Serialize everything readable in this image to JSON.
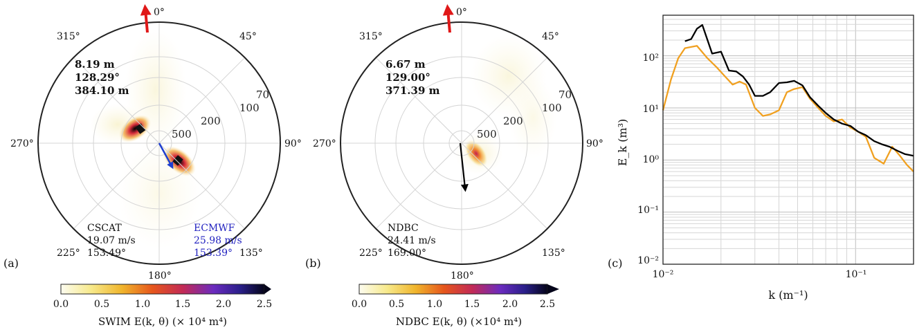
{
  "colors": {
    "frame": "#222222",
    "grid": "#d4d4d4",
    "swim_line": "#000000",
    "ndbc_line": "#f0a020",
    "ecmwf_text": "#1f1fbf",
    "dir_arrow": "#e01818",
    "ecmwf_arrow": "#1f3fd0"
  },
  "panels": {
    "a": {
      "letter": "(a)",
      "directions": [
        "0°",
        "45°",
        "90°",
        "135°",
        "180°",
        "225°",
        "270°",
        "315°"
      ],
      "wavelength_ticks": [
        "500",
        "200",
        "100",
        "70"
      ],
      "stats": [
        "8.19 m",
        "128.29°",
        "384.10 m"
      ],
      "wind_left": {
        "source": "CSCAT",
        "speed": "19.07 m/s",
        "direction": "153.49°"
      },
      "wind_right": {
        "source": "ECMWF",
        "speed": "25.98 m/s",
        "direction": "153.39°"
      },
      "colorbar": {
        "ticks": [
          "0.0",
          "0.5",
          "1.0",
          "1.5",
          "2.0",
          "2.5"
        ],
        "label": "SWIM E(k, θ) (× 10⁴ m⁴)"
      }
    },
    "b": {
      "letter": "(b)",
      "directions": [
        "0°",
        "45°",
        "90°",
        "135°",
        "180°",
        "225°",
        "270°",
        "315°"
      ],
      "wavelength_ticks": [
        "500",
        "200",
        "100",
        "70"
      ],
      "stats": [
        "6.67 m",
        "129.00°",
        "371.39 m"
      ],
      "wind_left": {
        "source": "NDBC",
        "speed": "24.41 m/s",
        "direction": "169.00°"
      },
      "colorbar": {
        "ticks": [
          "0.0",
          "0.5",
          "1.0",
          "1.5",
          "2.0",
          "2.5"
        ],
        "label": "NDBC E(k, θ) (×10⁴ m⁴)"
      }
    },
    "c": {
      "letter": "(c)",
      "ylabel": "E_k (m³)",
      "xlabel": "k (m⁻¹)",
      "yticks": [
        "10²",
        "10¹",
        "10⁰",
        "10⁻¹",
        "10⁻²"
      ],
      "xticks": [
        "10⁻²",
        "10⁻¹"
      ]
    }
  },
  "chart_data": [
    {
      "type": "heatmap",
      "panel": "a",
      "projection": "polar",
      "direction_convention": "clockwise from north (0° at top)",
      "radial_axis": "wavelength (m)",
      "wavelength_rings": [
        500,
        200,
        100,
        70
      ],
      "hotspots": [
        {
          "direction_deg": 300,
          "wavelength_m": 384,
          "energy_1e4_m4": 2.4
        },
        {
          "direction_deg": 128,
          "wavelength_m": 384,
          "energy_1e4_m4": 2.4
        }
      ],
      "colorbar_range": [
        0,
        2.5
      ],
      "arrows": [
        {
          "name": "red",
          "direction_deg": 7
        },
        {
          "name": "blue",
          "direction_deg": 153.39
        }
      ]
    },
    {
      "type": "heatmap",
      "panel": "b",
      "projection": "polar",
      "direction_convention": "clockwise from north (0° at top)",
      "radial_axis": "wavelength (m)",
      "wavelength_rings": [
        500,
        200,
        100,
        70
      ],
      "hotspots": [
        {
          "direction_deg": 129,
          "wavelength_m": 371,
          "energy_1e4_m4": 1.3
        }
      ],
      "colorbar_range": [
        0,
        2.5
      ],
      "arrows": [
        {
          "name": "red",
          "direction_deg": 7
        },
        {
          "name": "black",
          "direction_deg": 169
        }
      ]
    },
    {
      "type": "line",
      "panel": "c",
      "xscale": "log",
      "yscale": "log",
      "xlim": [
        0.01,
        0.2
      ],
      "ylim": [
        0.01,
        600
      ],
      "grid": true,
      "series": [
        {
          "color": "#000000",
          "x": [
            0.013,
            0.014,
            0.015,
            0.016,
            0.018,
            0.02,
            0.022,
            0.024,
            0.026,
            0.028,
            0.03,
            0.033,
            0.036,
            0.04,
            0.044,
            0.048,
            0.053,
            0.058,
            0.064,
            0.07,
            0.077,
            0.085,
            0.094,
            0.103,
            0.113,
            0.125,
            0.137,
            0.15,
            0.165,
            0.18,
            0.2
          ],
          "values": [
            190,
            210,
            330,
            390,
            110,
            120,
            52,
            50,
            40,
            28,
            17,
            17,
            20,
            30,
            31,
            33,
            27,
            16,
            11,
            8,
            6,
            5,
            4.5,
            3.5,
            3,
            2.3,
            2,
            1.8,
            1.5,
            1.3,
            1.2
          ]
        },
        {
          "color": "#f0a020",
          "x": [
            0.01,
            0.011,
            0.012,
            0.013,
            0.015,
            0.017,
            0.019,
            0.021,
            0.023,
            0.025,
            0.027,
            0.03,
            0.033,
            0.036,
            0.04,
            0.044,
            0.048,
            0.053,
            0.058,
            0.064,
            0.07,
            0.077,
            0.085,
            0.094,
            0.103,
            0.113,
            0.125,
            0.14,
            0.155,
            0.17,
            0.185,
            0.2
          ],
          "values": [
            9,
            35,
            90,
            140,
            155,
            90,
            60,
            40,
            28,
            32,
            28,
            10,
            7,
            7.5,
            9,
            20,
            23,
            25,
            15,
            10,
            7,
            5.5,
            6,
            4.2,
            3.5,
            2.8,
            1.1,
            0.85,
            1.8,
            1.2,
            0.8,
            0.6
          ]
        }
      ]
    }
  ]
}
